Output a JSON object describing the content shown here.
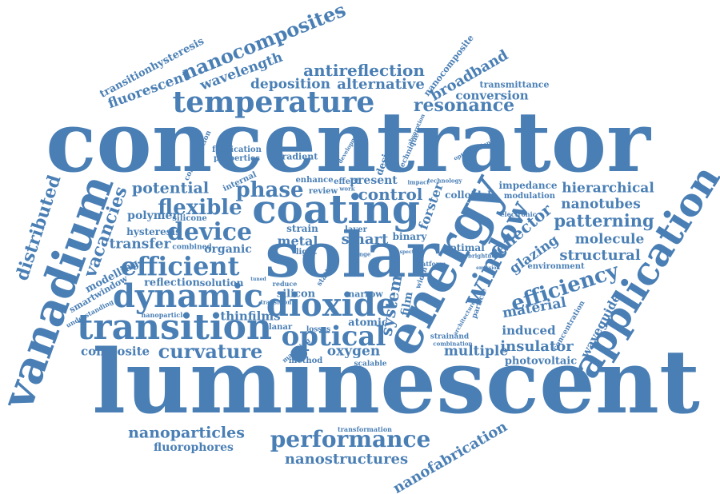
{
  "color": "#4a7fb5",
  "words": [
    "concentrator",
    "luminescent",
    "solar",
    "energy",
    "vanadium",
    "application",
    "coating",
    "dioxide",
    "transition",
    "dynamic",
    "window",
    "efficient",
    "temperature",
    "optical",
    "device",
    "flexible",
    "phase",
    "efficiency",
    "performance",
    "curvature",
    "nanocomposites",
    "antireflection",
    "resonance",
    "alternative",
    "deposition",
    "wavelength",
    "fluorescent",
    "transitionhysteresis",
    "nanocomposite",
    "broadband",
    "transmittance",
    "conversion",
    "distributed",
    "vacancies",
    "potential",
    "control",
    "present",
    "smart",
    "system",
    "reflector",
    "patterning",
    "glazing",
    "hierarchical",
    "nanotubes",
    "molecule",
    "structural",
    "material",
    "waveguide",
    "insulator",
    "photovoltaic",
    "induced",
    "multiple",
    "oxygen",
    "thinfilms",
    "composite",
    "modelling",
    "smartwindow",
    "reflection",
    "solution",
    "silicon",
    "transfer",
    "polymer",
    "hysteresis",
    "organic",
    "metal",
    "strain",
    "nanoparticles",
    "fluorophores",
    "nanostructures",
    "nanofabrication",
    "impedance",
    "modulation",
    "colloidal",
    "environment",
    "optimal",
    "forster",
    "atomic",
    "film",
    "binary",
    "layer",
    "effect",
    "enhance",
    "internal",
    "review",
    "gradient",
    "design",
    "fabrication",
    "properties",
    "configuration",
    "silicone",
    "combined",
    "nanoparticle",
    "understanding",
    "reduce",
    "narrow",
    "method",
    "scalable",
    "matching",
    "planar",
    "losses",
    "transformation",
    "combination",
    "strainand",
    "light",
    "technique",
    "electronic",
    "particle",
    "concentration",
    "architecture",
    "transition",
    "work",
    "tuned",
    "static",
    "development",
    "absorption",
    "optimization",
    "technology",
    "impact",
    "platform",
    "brightness",
    "range",
    "emission",
    "width",
    "spectra"
  ]
}
